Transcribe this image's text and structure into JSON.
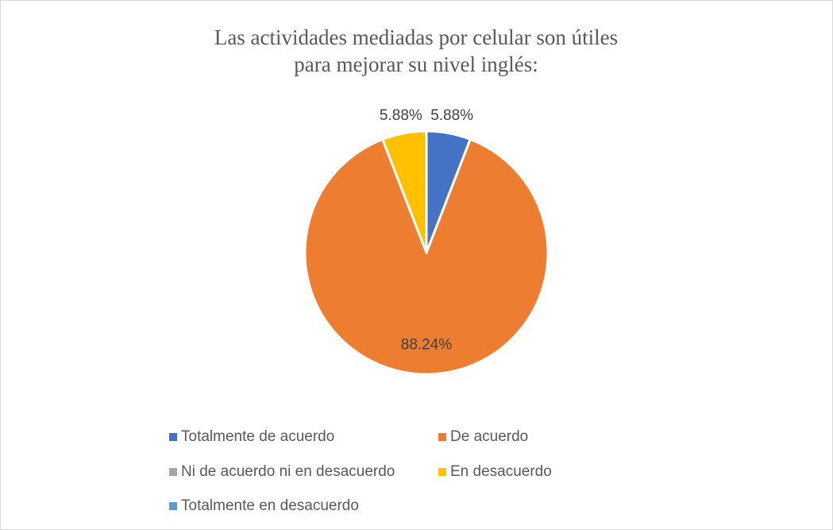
{
  "chart_data": {
    "type": "pie",
    "title": "Las actividades mediadas por celular son útiles para mejorar su nivel inglés:",
    "categories": [
      "Totalmente de acuerdo",
      "De acuerdo",
      "Ni de acuerdo ni en desacuerdo",
      "En desacuerdo",
      "Totalmente en desacuerdo"
    ],
    "values": [
      5.88,
      88.24,
      0,
      5.88,
      0
    ],
    "value_labels": [
      "5.88%",
      "88.24%",
      null,
      "5.88%",
      null
    ],
    "colors": [
      "#4472c4",
      "#ed7d31",
      "#a5a5a5",
      "#ffc000",
      "#5b9bd5"
    ],
    "legend": "bottom"
  }
}
